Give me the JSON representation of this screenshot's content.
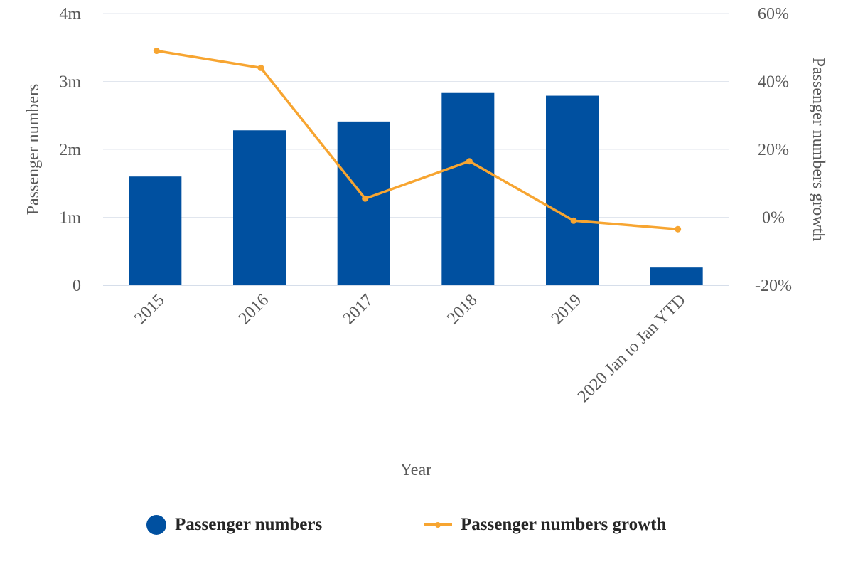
{
  "chart_data": {
    "type": "bar",
    "categories": [
      "2015",
      "2016",
      "2017",
      "2018",
      "2019",
      "2020 Jan to Jan YTD"
    ],
    "series": [
      {
        "name": "Passenger numbers",
        "type": "bar",
        "axis": "left",
        "color": "#0050A0",
        "values": [
          1600000,
          2280000,
          2410000,
          2830000,
          2790000,
          260000
        ]
      },
      {
        "name": "Passenger numbers growth",
        "type": "line",
        "axis": "right",
        "color": "#F7A531",
        "values": [
          49,
          44,
          5.5,
          16.5,
          -1,
          -3.5
        ]
      }
    ],
    "xlabel": "Year",
    "ylabel": "Passenger numbers",
    "y2label": "Passenger numbers growth",
    "ylim": [
      0,
      4000000
    ],
    "y2lim": [
      -20,
      60
    ],
    "yticks": [
      "0",
      "1m",
      "2m",
      "3m",
      "4m"
    ],
    "y2ticks": [
      "-20%",
      "0%",
      "20%",
      "40%",
      "60%"
    ],
    "grid": true,
    "legend_position": "bottom"
  },
  "legend": {
    "bar_label": "Passenger numbers",
    "line_label": "Passenger numbers growth"
  }
}
